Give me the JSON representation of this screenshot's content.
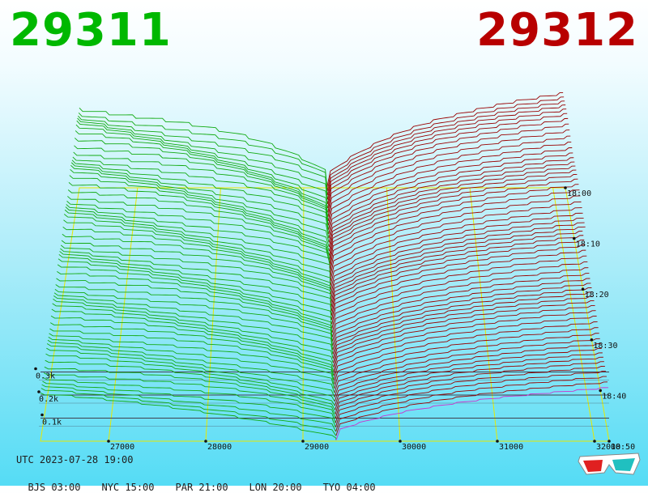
{
  "header": {
    "bid": "29311",
    "ask": "29312"
  },
  "chart_data": {
    "type": "area",
    "bid": "29311",
    "ask": "29312",
    "x_ticks": [
      27000,
      28000,
      29000,
      30000,
      31000,
      32000
    ],
    "x_tick_labels": [
      "27000",
      "28000",
      "29000",
      "30000",
      "31000",
      "32000"
    ],
    "z_ticks": [
      0.1,
      0.2,
      0.3
    ],
    "z_tick_labels": [
      "0.1k",
      "0.2k",
      "0.3k"
    ],
    "time_ticks": [
      "18:00",
      "18:10",
      "18:20",
      "18:30",
      "18:40",
      "18:50"
    ],
    "time_range_minutes": [
      -60,
      0
    ],
    "snapshots": 60,
    "xlim": [
      26300,
      32150
    ],
    "zlim": [
      0,
      0.35
    ],
    "colors": {
      "bid_side": "#11aa11",
      "ask_side": "#990000",
      "latest_ask": "#cc33cc",
      "grid": "#e8e800"
    }
  },
  "footer": {
    "utc": "UTC 2023-07-28 19:00",
    "timezones": [
      "BJS 03:00",
      "NYC 15:00",
      "PAR 21:00",
      "LON 20:00",
      "TYO 04:00"
    ]
  },
  "icons": {
    "glasses": "3d-glasses-icon"
  }
}
